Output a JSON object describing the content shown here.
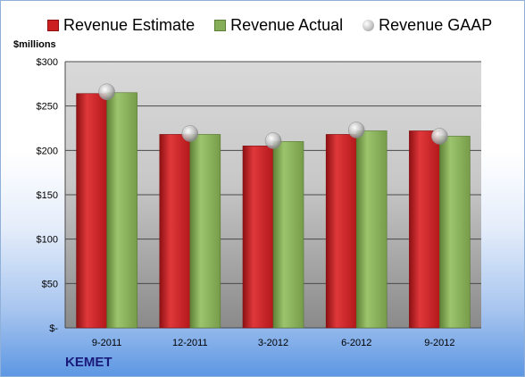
{
  "chart_data": {
    "type": "bar",
    "categories": [
      "9-2011",
      "12-2011",
      "3-2012",
      "6-2012",
      "9-2012"
    ],
    "series": [
      {
        "name": "Revenue Estimate",
        "type": "bar",
        "color": "#cc1f22",
        "values": [
          264,
          218,
          205,
          218,
          222
        ]
      },
      {
        "name": "Revenue Actual",
        "type": "bar",
        "color": "#86ad57",
        "values": [
          265,
          218,
          210,
          222,
          216
        ]
      },
      {
        "name": "Revenue GAAP",
        "type": "marker",
        "color": "#b8b8b8",
        "values": [
          266,
          219,
          211,
          223,
          216
        ]
      }
    ],
    "ylabel": "$millions",
    "ylim": [
      0,
      300
    ],
    "yticks": [
      0,
      50,
      100,
      150,
      200,
      250,
      300
    ],
    "ytick_labels": [
      "$-",
      "$50",
      "$100",
      "$150",
      "$200",
      "$250",
      "$300"
    ],
    "grid": true,
    "legend": "top"
  },
  "company": "KEMET"
}
